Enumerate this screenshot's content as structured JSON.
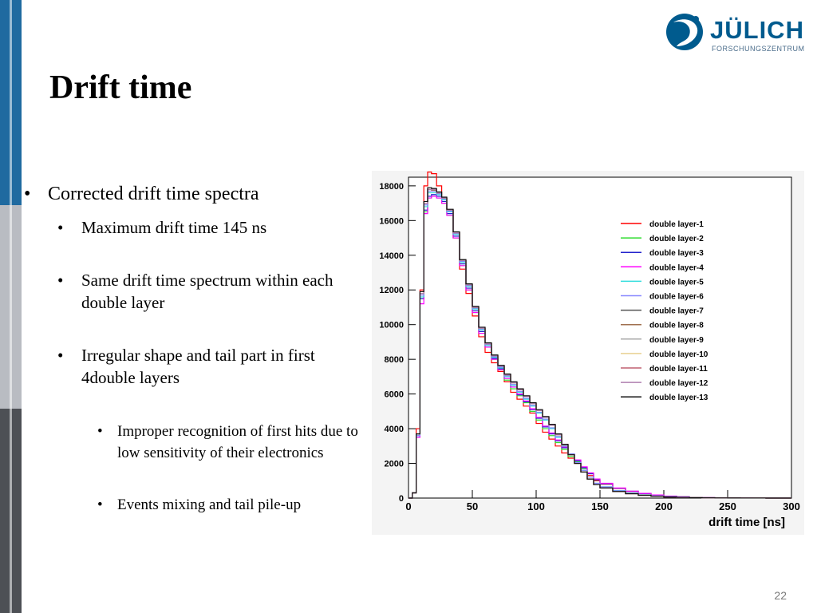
{
  "logo": {
    "name": "JÜLICH",
    "sub": "FORSCHUNGSZENTRUM"
  },
  "title": "Drift time",
  "bullets": {
    "main": "Corrected drift time spectra",
    "sub1": "Maximum drift time 145 ns",
    "sub2": "Same drift time spectrum within each double layer",
    "sub3": "Irregular shape and tail part in first 4double layers",
    "subsub1": "Improper recognition of first hits due to low sensitivity of their electronics",
    "subsub2": "Events mixing and tail pile-up"
  },
  "page_number": "22",
  "colors": {
    "logo_blue": "#005b8e",
    "sidebar_blue": "#1f6aa0"
  },
  "chart_data": {
    "type": "line",
    "xlabel": "drift time [ns]",
    "ylabel": "",
    "xlim": [
      0,
      300
    ],
    "ylim": [
      0,
      18500
    ],
    "x_ticks": [
      0,
      50,
      100,
      150,
      200,
      250,
      300
    ],
    "y_ticks": [
      0,
      2000,
      4000,
      6000,
      8000,
      10000,
      12000,
      14000,
      16000,
      18000
    ],
    "grid": false,
    "legend_position": "top-right",
    "x": [
      0,
      3,
      6,
      9,
      12,
      15,
      18,
      22,
      26,
      30,
      35,
      40,
      45,
      50,
      55,
      60,
      65,
      70,
      75,
      80,
      85,
      90,
      95,
      100,
      105,
      110,
      115,
      120,
      125,
      130,
      135,
      140,
      145,
      150,
      160,
      170,
      180,
      190,
      200,
      210,
      220,
      230,
      240,
      250,
      260,
      270,
      280,
      290,
      300
    ],
    "series": [
      {
        "name": "double layer-1",
        "color": "#ff0000",
        "values": [
          0,
          300,
          4000,
          12000,
          18000,
          18800,
          18700,
          18000,
          17300,
          16500,
          15000,
          13200,
          11800,
          10500,
          9300,
          8400,
          7800,
          7300,
          6700,
          6100,
          5700,
          5300,
          4900,
          4300,
          3800,
          3400,
          3000,
          2600,
          2300,
          2000,
          1600,
          1300,
          1000,
          800,
          550,
          380,
          260,
          170,
          110,
          70,
          40,
          25,
          15,
          10,
          5,
          3,
          0,
          0,
          0
        ]
      },
      {
        "name": "double layer-2",
        "color": "#33dd33",
        "values": [
          0,
          300,
          3500,
          11500,
          16500,
          17300,
          17400,
          17300,
          17000,
          16300,
          15000,
          13400,
          12000,
          10700,
          9500,
          8700,
          8000,
          7400,
          6800,
          6300,
          5900,
          5500,
          5000,
          4500,
          4000,
          3600,
          3200,
          2800,
          2400,
          2100,
          1700,
          1400,
          1050,
          820,
          560,
          390,
          260,
          170,
          110,
          70,
          40,
          25,
          15,
          10,
          5,
          3,
          0,
          0,
          0
        ]
      },
      {
        "name": "double layer-3",
        "color": "#2222cc",
        "values": [
          0,
          300,
          3500,
          11500,
          16600,
          17400,
          17500,
          17400,
          17100,
          16400,
          15100,
          13500,
          12100,
          10800,
          9600,
          8700,
          8050,
          7450,
          6900,
          6400,
          5950,
          5550,
          5100,
          4600,
          4100,
          3700,
          3300,
          2900,
          2500,
          2150,
          1750,
          1400,
          1050,
          820,
          560,
          390,
          260,
          170,
          110,
          70,
          40,
          25,
          15,
          10,
          5,
          3,
          0,
          0,
          0
        ]
      },
      {
        "name": "double layer-4",
        "color": "#ff00ff",
        "values": [
          0,
          300,
          3500,
          11200,
          16400,
          17300,
          17400,
          17300,
          17000,
          16300,
          15000,
          13400,
          12000,
          10700,
          9500,
          8700,
          8000,
          7400,
          6900,
          6400,
          6000,
          5600,
          5150,
          4650,
          4150,
          3750,
          3350,
          2950,
          2550,
          2200,
          1800,
          1450,
          1100,
          850,
          580,
          400,
          270,
          180,
          115,
          70,
          40,
          25,
          15,
          10,
          5,
          3,
          0,
          0,
          0
        ]
      },
      {
        "name": "double layer-5",
        "color": "#33dddd",
        "values": [
          0,
          300,
          3600,
          11600,
          16800,
          17600,
          17600,
          17500,
          17200,
          16500,
          15200,
          13600,
          12200,
          10900,
          9700,
          8800,
          8100,
          7500,
          7000,
          6500,
          6100,
          5700,
          5300,
          4900,
          4500,
          4000,
          3500,
          3000,
          2500,
          2050,
          1600,
          1200,
          850,
          650,
          430,
          290,
          190,
          120,
          80,
          50,
          30,
          18,
          10,
          6,
          4,
          2,
          0,
          0,
          0
        ]
      },
      {
        "name": "double layer-6",
        "color": "#8888ff",
        "values": [
          0,
          300,
          3600,
          11700,
          16900,
          17700,
          17700,
          17550,
          17250,
          16550,
          15250,
          13650,
          12250,
          10950,
          9750,
          8850,
          8150,
          7550,
          7050,
          6550,
          6150,
          5750,
          5350,
          4950,
          4550,
          4050,
          3550,
          3050,
          2550,
          2050,
          1600,
          1200,
          850,
          640,
          420,
          280,
          180,
          115,
          75,
          45,
          28,
          16,
          9,
          5,
          3,
          2,
          0,
          0,
          0
        ]
      },
      {
        "name": "double layer-7",
        "color": "#555555",
        "values": [
          0,
          300,
          3700,
          11800,
          17000,
          17800,
          17800,
          17600,
          17300,
          16600,
          15300,
          13700,
          12300,
          11000,
          9800,
          8900,
          8200,
          7600,
          7100,
          6650,
          6250,
          5850,
          5450,
          5050,
          4650,
          4200,
          3650,
          3050,
          2500,
          2000,
          1500,
          1100,
          780,
          580,
          380,
          250,
          160,
          100,
          65,
          40,
          25,
          15,
          8,
          5,
          3,
          2,
          0,
          0,
          0
        ]
      },
      {
        "name": "double layer-8",
        "color": "#a07050",
        "values": [
          0,
          300,
          3700,
          11800,
          17000,
          17800,
          17750,
          17600,
          17300,
          16600,
          15300,
          13700,
          12300,
          11000,
          9800,
          8900,
          8200,
          7600,
          7100,
          6650,
          6250,
          5850,
          5450,
          5050,
          4650,
          4200,
          3650,
          3050,
          2500,
          2000,
          1500,
          1100,
          780,
          580,
          380,
          250,
          160,
          100,
          65,
          40,
          25,
          15,
          8,
          5,
          3,
          2,
          0,
          0,
          0
        ]
      },
      {
        "name": "double layer-9",
        "color": "#aaaaaa",
        "values": [
          0,
          300,
          3700,
          11800,
          17000,
          17800,
          17800,
          17600,
          17300,
          16600,
          15300,
          13700,
          12300,
          11000,
          9800,
          8900,
          8200,
          7600,
          7100,
          6650,
          6250,
          5850,
          5450,
          5050,
          4650,
          4200,
          3650,
          3050,
          2500,
          2000,
          1500,
          1100,
          780,
          580,
          380,
          250,
          160,
          100,
          65,
          40,
          25,
          15,
          8,
          5,
          3,
          2,
          0,
          0,
          0
        ]
      },
      {
        "name": "double layer-10",
        "color": "#e8d090",
        "values": [
          0,
          300,
          3700,
          11800,
          17000,
          17800,
          17800,
          17600,
          17300,
          16600,
          15300,
          13700,
          12300,
          11000,
          9800,
          8900,
          8200,
          7600,
          7100,
          6650,
          6250,
          5850,
          5450,
          5050,
          4650,
          4200,
          3650,
          3050,
          2500,
          2000,
          1500,
          1100,
          780,
          580,
          380,
          250,
          160,
          100,
          65,
          40,
          25,
          15,
          8,
          5,
          3,
          2,
          0,
          0,
          0
        ]
      },
      {
        "name": "double layer-11",
        "color": "#c06070",
        "values": [
          0,
          300,
          3700,
          11800,
          17000,
          17800,
          17800,
          17600,
          17300,
          16600,
          15300,
          13700,
          12300,
          11000,
          9800,
          8900,
          8200,
          7600,
          7100,
          6650,
          6250,
          5850,
          5450,
          5050,
          4650,
          4200,
          3650,
          3050,
          2500,
          2000,
          1500,
          1100,
          780,
          580,
          380,
          250,
          160,
          100,
          65,
          40,
          25,
          15,
          8,
          5,
          3,
          2,
          0,
          0,
          0
        ]
      },
      {
        "name": "double layer-12",
        "color": "#b080b0",
        "values": [
          0,
          300,
          3700,
          11800,
          17000,
          17800,
          17800,
          17600,
          17300,
          16600,
          15300,
          13700,
          12300,
          11000,
          9800,
          8900,
          8200,
          7600,
          7100,
          6650,
          6250,
          5850,
          5450,
          5050,
          4650,
          4200,
          3650,
          3050,
          2500,
          2000,
          1500,
          1100,
          780,
          580,
          380,
          250,
          160,
          100,
          65,
          40,
          25,
          15,
          8,
          5,
          3,
          2,
          0,
          0,
          0
        ]
      },
      {
        "name": "double layer-13",
        "color": "#111111",
        "values": [
          0,
          300,
          3700,
          11900,
          17100,
          17900,
          17850,
          17650,
          17350,
          16650,
          15350,
          13750,
          12350,
          11050,
          9850,
          8950,
          8250,
          7650,
          7150,
          6700,
          6300,
          5900,
          5500,
          5100,
          4700,
          4250,
          3700,
          3100,
          2500,
          2000,
          1500,
          1100,
          780,
          580,
          380,
          250,
          160,
          100,
          65,
          40,
          25,
          15,
          8,
          5,
          3,
          2,
          0,
          0,
          0
        ]
      }
    ]
  }
}
